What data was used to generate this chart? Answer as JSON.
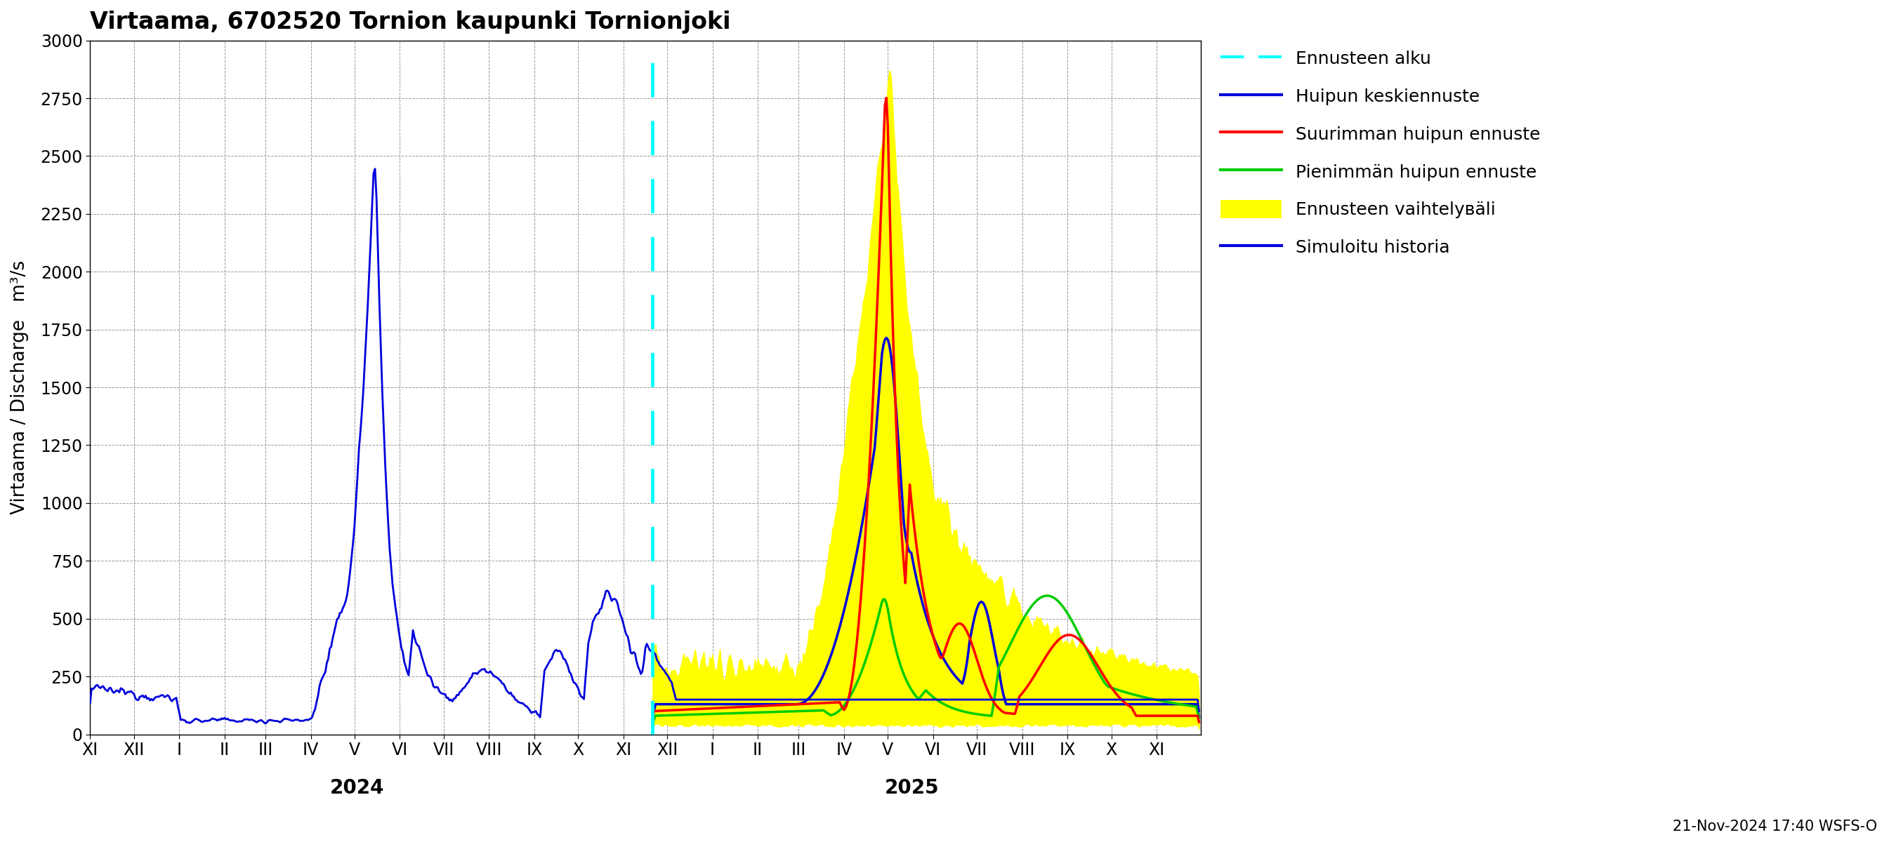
{
  "title": "Virtaama, 6702520 Tornion kaupunki Tornionjoki",
  "ylabel": "Virtaama / Discharge   m³/s",
  "ylim": [
    0,
    3000
  ],
  "yticks": [
    0,
    250,
    500,
    750,
    1000,
    1250,
    1500,
    1750,
    2000,
    2250,
    2500,
    2750,
    3000
  ],
  "footnote": "21-Nov-2024 17:40 WSFS-O",
  "legend_labels": [
    "Ennusteen alku",
    "Huipun keskiennuste",
    "Suurimman huipun ennuste",
    "Pienimmän huipun ennuste",
    "Ennusteen vaihtelувäli",
    "Simuloitu historia"
  ],
  "colors": {
    "history": "#0000dd",
    "mean_forecast": "#0000dd",
    "max_forecast": "#ff0000",
    "min_forecast": "#00cc00",
    "envelope": "#ffff00",
    "forecast_line": "#00ffff",
    "grid": "#999999"
  },
  "year_label_2024": "2024",
  "year_label_2025": "2025",
  "days_per_month": [
    30,
    31,
    31,
    28,
    31,
    30,
    31,
    30,
    31,
    31,
    30,
    31,
    30,
    31,
    31,
    28,
    31,
    30,
    31,
    30,
    31,
    31,
    30,
    31,
    30
  ],
  "month_labels": [
    "XI",
    "XII",
    "I",
    "II",
    "III",
    "IV",
    "V",
    "VI",
    "VII",
    "VIII",
    "IX",
    "X",
    "XI",
    "XII",
    "I",
    "II",
    "III",
    "IV",
    "V",
    "VI",
    "VII",
    "VIII",
    "IX",
    "X",
    "XI"
  ]
}
